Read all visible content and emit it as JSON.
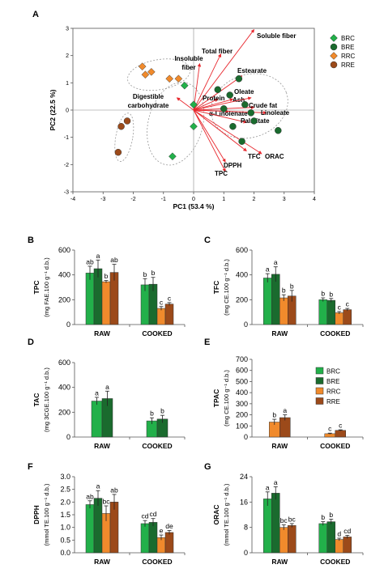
{
  "colors": {
    "BRC": "#22b04a",
    "BRE": "#1a6b2e",
    "RRC": "#f08a2c",
    "RRE": "#9c4a1a",
    "arrow": "#e8282e",
    "ellipse": "#999999"
  },
  "chart_data": [
    {
      "panel": "A",
      "type": "scatter",
      "xlabel": "PC1 (53.4 %)",
      "ylabel": "PC2 (22.5 %)",
      "xlim": [
        -4,
        4
      ],
      "ylim": [
        -3,
        3
      ],
      "xticks": [
        "-4",
        "-3",
        "-2",
        "-1",
        "0",
        "1",
        "2",
        "3",
        "4"
      ],
      "yticks": [
        "3",
        "2",
        "1",
        "0",
        "-1",
        "-2",
        "-3"
      ],
      "legend": [
        "BRC",
        "BRE",
        "RRC",
        "RRE"
      ],
      "legend_position": "right",
      "series": [
        {
          "name": "BRC",
          "marker": "diamond",
          "points": [
            [
              -0.3,
              0.9
            ],
            [
              0.0,
              0.2
            ],
            [
              0.0,
              -0.6
            ],
            [
              -0.7,
              -1.7
            ]
          ]
        },
        {
          "name": "BRE",
          "marker": "circle",
          "points": [
            [
              0.8,
              0.75
            ],
            [
              1.0,
              0.05
            ],
            [
              1.2,
              0.55
            ],
            [
              1.5,
              1.15
            ],
            [
              1.7,
              0.2
            ],
            [
              1.9,
              -0.1
            ],
            [
              2.0,
              -0.4
            ],
            [
              2.8,
              -0.75
            ],
            [
              1.3,
              -0.6
            ],
            [
              1.6,
              -1.15
            ]
          ]
        },
        {
          "name": "RRC",
          "marker": "diamond",
          "points": [
            [
              -1.7,
              1.6
            ],
            [
              -1.4,
              1.4
            ],
            [
              -1.6,
              1.3
            ],
            [
              -0.8,
              1.15
            ],
            [
              -0.5,
              1.15
            ]
          ]
        },
        {
          "name": "RRE",
          "marker": "circle",
          "points": [
            [
              -2.4,
              -0.6
            ],
            [
              -2.2,
              -0.4
            ],
            [
              -2.5,
              -1.55
            ]
          ]
        }
      ],
      "vectors": [
        {
          "label": "Soluble fiber",
          "end": [
            2.0,
            2.95
          ]
        },
        {
          "label": "Total fiber",
          "end": [
            0.9,
            2.05
          ]
        },
        {
          "label": "Insoluble fiber",
          "end": [
            0.2,
            1.7
          ]
        },
        {
          "label": "Estearate",
          "end": [
            1.6,
            1.25
          ]
        },
        {
          "label": "Digestible carbohydrate",
          "end": [
            -0.55,
            0.45
          ]
        },
        {
          "label": "Protein",
          "end": [
            0.8,
            0.4
          ]
        },
        {
          "label": "Ash",
          "end": [
            1.3,
            0.4
          ]
        },
        {
          "label": "Oleate",
          "end": [
            1.9,
            0.45
          ]
        },
        {
          "label": "Crude fat",
          "end": [
            2.0,
            0.1
          ]
        },
        {
          "label": "α-Linolenate",
          "end": [
            1.15,
            -0.05
          ]
        },
        {
          "label": "Linoleate",
          "end": [
            2.4,
            -0.1
          ]
        },
        {
          "label": "Palmitate",
          "end": [
            1.75,
            -0.45
          ]
        },
        {
          "label": "TFC",
          "end": [
            1.75,
            -1.5
          ]
        },
        {
          "label": "ORAC",
          "end": [
            2.25,
            -1.6
          ]
        },
        {
          "label": "DPPH",
          "end": [
            1.05,
            -1.9
          ]
        },
        {
          "label": "TPC",
          "end": [
            1.05,
            -2.25
          ]
        }
      ]
    },
    {
      "panel": "B",
      "type": "bar",
      "ylabel": "TPC",
      "unit": "(mg FAE.100 g⁻¹ d.b.)",
      "categories": [
        "RAW",
        "COOKED"
      ],
      "ylim": [
        0,
        600
      ],
      "yticks": [
        "0",
        "200",
        "400",
        "600"
      ],
      "series": [
        {
          "name": "BRC",
          "values": [
            415,
            320
          ],
          "errors": [
            55,
            50
          ],
          "letters": [
            "ab",
            "b"
          ]
        },
        {
          "name": "BRE",
          "values": [
            450,
            325
          ],
          "errors": [
            70,
            55
          ],
          "letters": [
            "a",
            "b"
          ]
        },
        {
          "name": "RRC",
          "values": [
            345,
            130
          ],
          "errors": [
            10,
            15
          ],
          "letters": [
            "b",
            "c"
          ]
        },
        {
          "name": "RRE",
          "values": [
            420,
            165
          ],
          "errors": [
            65,
            12
          ],
          "letters": [
            "ab",
            "c"
          ]
        }
      ]
    },
    {
      "panel": "C",
      "type": "bar",
      "ylabel": "TFC",
      "unit": "(mg CE.100 g⁻¹ d.b.)",
      "categories": [
        "RAW",
        "COOKED"
      ],
      "ylim": [
        0,
        600
      ],
      "yticks": [
        "0",
        "200",
        "400",
        "600"
      ],
      "series": [
        {
          "name": "BRC",
          "values": [
            375,
            200
          ],
          "errors": [
            35,
            15
          ],
          "letters": [
            "a",
            "b"
          ]
        },
        {
          "name": "BRE",
          "values": [
            405,
            195
          ],
          "errors": [
            60,
            15
          ],
          "letters": [
            "a",
            "b"
          ]
        },
        {
          "name": "RRC",
          "values": [
            215,
            95
          ],
          "errors": [
            25,
            10
          ],
          "letters": [
            "b",
            "c"
          ]
        },
        {
          "name": "RRE",
          "values": [
            230,
            120
          ],
          "errors": [
            45,
            10
          ],
          "letters": [
            "b",
            "c"
          ]
        }
      ]
    },
    {
      "panel": "D",
      "type": "bar",
      "ylabel": "TAC",
      "unit": "(mg 3CGE.100 g⁻¹ d.b.)",
      "categories": [
        "RAW",
        "COOKED"
      ],
      "ylim": [
        0,
        600
      ],
      "yticks": [
        "0",
        "200",
        "400",
        "600"
      ],
      "series": [
        {
          "name": "BRC",
          "values": [
            290,
            130
          ],
          "errors": [
            30,
            25
          ],
          "letters": [
            "a",
            "b"
          ]
        },
        {
          "name": "BRE",
          "values": [
            310,
            145
          ],
          "errors": [
            60,
            30
          ],
          "letters": [
            "a",
            "b"
          ]
        }
      ]
    },
    {
      "panel": "E",
      "type": "bar",
      "ylabel": "TPAC",
      "unit": "(mg CE.100 g⁻¹ d.b.)",
      "categories": [
        "RAW",
        "COOKED"
      ],
      "ylim": [
        0,
        700
      ],
      "yticks": [
        "0",
        "100",
        "200",
        "300",
        "400",
        "500",
        "600",
        "700"
      ],
      "legend": [
        "BRC",
        "BRE",
        "RRC",
        "RRE"
      ],
      "series": [
        {
          "name": "RRC",
          "values": [
            135,
            30
          ],
          "errors": [
            25,
            5
          ],
          "letters": [
            "b",
            "c"
          ]
        },
        {
          "name": "RRE",
          "values": [
            175,
            60
          ],
          "errors": [
            25,
            5
          ],
          "letters": [
            "a",
            "c"
          ]
        }
      ]
    },
    {
      "panel": "F",
      "type": "bar",
      "ylabel": "DPPH",
      "unit": "(mmol TE.100 g⁻¹ d.b.)",
      "categories": [
        "RAW",
        "COOKED"
      ],
      "ylim": [
        0,
        3
      ],
      "yticks": [
        "0.0",
        "0.5",
        "1.0",
        "1.5",
        "2.0",
        "2.5",
        "3.0"
      ],
      "series": [
        {
          "name": "BRC",
          "values": [
            1.9,
            1.15
          ],
          "errors": [
            0.15,
            0.12
          ],
          "letters": [
            "ab",
            "cd"
          ]
        },
        {
          "name": "BRE",
          "values": [
            2.15,
            1.2
          ],
          "errors": [
            0.3,
            0.15
          ],
          "letters": [
            "a",
            "cd"
          ]
        },
        {
          "name": "RRC",
          "values": [
            1.55,
            0.6
          ],
          "errors": [
            0.3,
            0.1
          ],
          "letters": [
            "bc",
            "e"
          ]
        },
        {
          "name": "RRE",
          "values": [
            2.0,
            0.8
          ],
          "errors": [
            0.3,
            0.08
          ],
          "letters": [
            "ab",
            "de"
          ]
        }
      ]
    },
    {
      "panel": "G",
      "type": "bar",
      "ylabel": "ORAC",
      "unit": "(mmol TE.100 g⁻¹ d.b.)",
      "categories": [
        "RAW",
        "COOKED"
      ],
      "ylim": [
        0,
        24
      ],
      "yticks": [
        "0",
        "8",
        "16",
        "24"
      ],
      "series": [
        {
          "name": "BRC",
          "values": [
            17,
            9.2
          ],
          "errors": [
            2.2,
            0.6
          ],
          "letters": [
            "a",
            "b"
          ]
        },
        {
          "name": "BRE",
          "values": [
            18.8,
            9.8
          ],
          "errors": [
            2.0,
            0.8
          ],
          "letters": [
            "a",
            "b"
          ]
        },
        {
          "name": "RRC",
          "values": [
            8.0,
            4.2
          ],
          "errors": [
            0.8,
            0.4
          ],
          "letters": [
            "bc",
            "d"
          ]
        },
        {
          "name": "RRE",
          "values": [
            8.6,
            5.0
          ],
          "errors": [
            0.6,
            0.5
          ],
          "letters": [
            "bc",
            "cd"
          ]
        }
      ]
    }
  ]
}
